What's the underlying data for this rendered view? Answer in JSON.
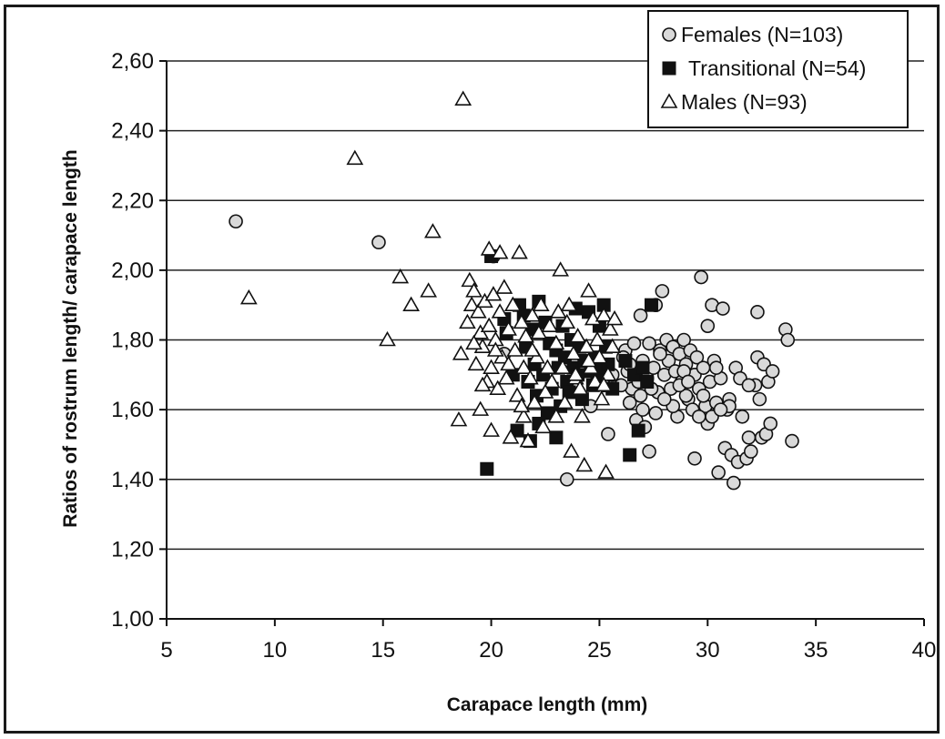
{
  "chart_data": {
    "type": "scatter",
    "xlabel": "Carapace length (mm)",
    "ylabel": "Ratios of rostrum length/ carapace length",
    "xlim": [
      5,
      40
    ],
    "ylim": [
      1.0,
      2.6
    ],
    "xticks": [
      "5",
      "10",
      "15",
      "20",
      "25",
      "30",
      "35",
      "40"
    ],
    "yticks": [
      "1,00",
      "1,20",
      "1,40",
      "1,60",
      "1,80",
      "2,00",
      "2,20",
      "2,40",
      "2,60"
    ],
    "grid": "horizontal",
    "legend_position": "top-right",
    "series": [
      {
        "name": "Females (N=103)",
        "marker": "circle",
        "color": "#d9d9d9",
        "points": [
          [
            8.2,
            2.14
          ],
          [
            14.8,
            2.08
          ],
          [
            20.1,
            2.04
          ],
          [
            20.6,
            1.76
          ],
          [
            23.5,
            1.4
          ],
          [
            24.6,
            1.61
          ],
          [
            25.4,
            1.53
          ],
          [
            26.2,
            1.77
          ],
          [
            26.3,
            1.71
          ],
          [
            26.4,
            1.62
          ],
          [
            26.5,
            1.66
          ],
          [
            26.6,
            1.79
          ],
          [
            26.7,
            1.57
          ],
          [
            26.8,
            1.68
          ],
          [
            26.9,
            1.64
          ],
          [
            26.9,
            1.87
          ],
          [
            27.0,
            1.74
          ],
          [
            27.1,
            1.55
          ],
          [
            27.2,
            1.69
          ],
          [
            27.3,
            1.48
          ],
          [
            27.3,
            1.79
          ],
          [
            27.5,
            1.72
          ],
          [
            27.6,
            1.9
          ],
          [
            27.7,
            1.65
          ],
          [
            27.8,
            1.77
          ],
          [
            27.9,
            1.94
          ],
          [
            28.0,
            1.7
          ],
          [
            28.1,
            1.8
          ],
          [
            28.2,
            1.74
          ],
          [
            28.3,
            1.66
          ],
          [
            28.4,
            1.78
          ],
          [
            28.5,
            1.71
          ],
          [
            28.6,
            1.58
          ],
          [
            28.7,
            1.76
          ],
          [
            28.8,
            1.68
          ],
          [
            28.9,
            1.8
          ],
          [
            29.0,
            1.73
          ],
          [
            29.1,
            1.63
          ],
          [
            29.2,
            1.77
          ],
          [
            29.3,
            1.6
          ],
          [
            29.4,
            1.7
          ],
          [
            29.4,
            1.46
          ],
          [
            29.5,
            1.75
          ],
          [
            29.6,
            1.66
          ],
          [
            29.7,
            1.98
          ],
          [
            29.8,
            1.72
          ],
          [
            29.9,
            1.61
          ],
          [
            30.0,
            1.84
          ],
          [
            30.0,
            1.56
          ],
          [
            30.1,
            1.68
          ],
          [
            30.2,
            1.9
          ],
          [
            30.3,
            1.74
          ],
          [
            30.4,
            1.62
          ],
          [
            30.5,
            1.42
          ],
          [
            30.6,
            1.69
          ],
          [
            30.7,
            1.89
          ],
          [
            30.8,
            1.49
          ],
          [
            30.9,
            1.6
          ],
          [
            31.0,
            1.63
          ],
          [
            31.1,
            1.47
          ],
          [
            31.2,
            1.39
          ],
          [
            31.3,
            1.72
          ],
          [
            31.4,
            1.45
          ],
          [
            31.5,
            1.69
          ],
          [
            31.6,
            1.58
          ],
          [
            31.8,
            1.46
          ],
          [
            31.9,
            1.52
          ],
          [
            32.0,
            1.48
          ],
          [
            32.2,
            1.67
          ],
          [
            32.3,
            1.75
          ],
          [
            32.3,
            1.88
          ],
          [
            32.4,
            1.63
          ],
          [
            32.5,
            1.52
          ],
          [
            32.6,
            1.73
          ],
          [
            32.7,
            1.53
          ],
          [
            32.8,
            1.68
          ],
          [
            32.9,
            1.56
          ],
          [
            33.0,
            1.71
          ],
          [
            30.2,
            1.58
          ],
          [
            29.0,
            1.64
          ],
          [
            28.4,
            1.61
          ],
          [
            27.6,
            1.59
          ],
          [
            28.9,
            1.71
          ],
          [
            29.6,
            1.58
          ],
          [
            30.4,
            1.72
          ],
          [
            31.0,
            1.61
          ],
          [
            31.9,
            1.67
          ],
          [
            33.6,
            1.83
          ],
          [
            33.7,
            1.8
          ],
          [
            33.9,
            1.51
          ],
          [
            26.0,
            1.67
          ],
          [
            26.4,
            1.73
          ],
          [
            27.4,
            1.66
          ],
          [
            28.0,
            1.63
          ],
          [
            28.7,
            1.67
          ],
          [
            29.1,
            1.68
          ],
          [
            29.8,
            1.64
          ],
          [
            30.6,
            1.6
          ],
          [
            25.2,
            1.67
          ],
          [
            25.6,
            1.7
          ],
          [
            26.1,
            1.75
          ],
          [
            27.0,
            1.6
          ],
          [
            27.8,
            1.76
          ]
        ]
      },
      {
        "name": "Transitional (N=54)",
        "marker": "square",
        "color": "#111111",
        "points": [
          [
            19.8,
            1.43
          ],
          [
            20.0,
            2.04
          ],
          [
            20.6,
            1.86
          ],
          [
            20.7,
            1.82
          ],
          [
            21.0,
            1.7
          ],
          [
            21.2,
            1.54
          ],
          [
            21.3,
            1.9
          ],
          [
            21.5,
            1.87
          ],
          [
            21.6,
            1.78
          ],
          [
            21.7,
            1.68
          ],
          [
            21.8,
            1.51
          ],
          [
            21.9,
            1.83
          ],
          [
            22.0,
            1.73
          ],
          [
            22.1,
            1.64
          ],
          [
            22.2,
            1.91
          ],
          [
            22.2,
            1.56
          ],
          [
            22.4,
            1.7
          ],
          [
            22.5,
            1.85
          ],
          [
            22.6,
            1.59
          ],
          [
            22.7,
            1.79
          ],
          [
            22.8,
            1.66
          ],
          [
            23.0,
            1.52
          ],
          [
            23.0,
            1.77
          ],
          [
            23.1,
            1.72
          ],
          [
            23.2,
            1.61
          ],
          [
            23.3,
            1.84
          ],
          [
            23.4,
            1.75
          ],
          [
            23.5,
            1.68
          ],
          [
            23.6,
            1.65
          ],
          [
            23.7,
            1.8
          ],
          [
            23.8,
            1.72
          ],
          [
            23.9,
            1.89
          ],
          [
            24.0,
            1.7
          ],
          [
            24.1,
            1.78
          ],
          [
            24.2,
            1.63
          ],
          [
            24.3,
            1.74
          ],
          [
            24.5,
            1.88
          ],
          [
            24.6,
            1.71
          ],
          [
            24.7,
            1.67
          ],
          [
            24.8,
            1.75
          ],
          [
            24.9,
            1.69
          ],
          [
            25.0,
            1.84
          ],
          [
            25.1,
            1.72
          ],
          [
            25.2,
            1.9
          ],
          [
            25.3,
            1.78
          ],
          [
            25.4,
            1.73
          ],
          [
            25.6,
            1.66
          ],
          [
            26.2,
            1.74
          ],
          [
            26.4,
            1.47
          ],
          [
            26.6,
            1.7
          ],
          [
            26.8,
            1.54
          ],
          [
            27.0,
            1.72
          ],
          [
            27.2,
            1.68
          ],
          [
            27.4,
            1.9
          ]
        ]
      },
      {
        "name": "Males (N=93)",
        "marker": "triangle",
        "color": "#ffffff",
        "points": [
          [
            8.8,
            1.92
          ],
          [
            13.7,
            2.32
          ],
          [
            15.2,
            1.8
          ],
          [
            15.8,
            1.98
          ],
          [
            16.3,
            1.9
          ],
          [
            17.1,
            1.94
          ],
          [
            17.3,
            2.11
          ],
          [
            18.5,
            1.57
          ],
          [
            18.6,
            1.76
          ],
          [
            18.7,
            2.49
          ],
          [
            18.9,
            1.85
          ],
          [
            19.0,
            1.97
          ],
          [
            19.1,
            1.9
          ],
          [
            19.2,
            1.94
          ],
          [
            19.3,
            1.73
          ],
          [
            19.4,
            1.88
          ],
          [
            19.5,
            1.82
          ],
          [
            19.5,
            1.6
          ],
          [
            19.6,
            1.78
          ],
          [
            19.7,
            1.91
          ],
          [
            19.8,
            1.68
          ],
          [
            19.9,
            2.06
          ],
          [
            19.9,
            1.84
          ],
          [
            20.0,
            1.54
          ],
          [
            20.0,
            1.72
          ],
          [
            20.1,
            1.93
          ],
          [
            20.2,
            1.8
          ],
          [
            20.3,
            1.66
          ],
          [
            20.4,
            2.05
          ],
          [
            20.4,
            1.88
          ],
          [
            20.5,
            1.75
          ],
          [
            20.6,
            1.95
          ],
          [
            20.7,
            1.69
          ],
          [
            20.8,
            1.83
          ],
          [
            20.9,
            1.52
          ],
          [
            21.0,
            1.9
          ],
          [
            21.1,
            1.77
          ],
          [
            21.2,
            1.64
          ],
          [
            21.3,
            2.05
          ],
          [
            21.4,
            1.85
          ],
          [
            21.5,
            1.58
          ],
          [
            21.5,
            1.72
          ],
          [
            21.6,
            1.81
          ],
          [
            21.7,
            1.51
          ],
          [
            21.8,
            1.69
          ],
          [
            21.9,
            1.87
          ],
          [
            22.0,
            1.62
          ],
          [
            22.1,
            1.75
          ],
          [
            22.2,
            1.82
          ],
          [
            22.3,
            1.9
          ],
          [
            22.4,
            1.55
          ],
          [
            22.6,
            1.72
          ],
          [
            22.7,
            1.84
          ],
          [
            22.8,
            1.68
          ],
          [
            23.0,
            1.79
          ],
          [
            23.1,
            1.88
          ],
          [
            23.2,
            2.0
          ],
          [
            23.3,
            1.72
          ],
          [
            23.4,
            1.62
          ],
          [
            23.5,
            1.85
          ],
          [
            23.6,
            1.9
          ],
          [
            23.7,
            1.48
          ],
          [
            23.8,
            1.76
          ],
          [
            23.9,
            1.69
          ],
          [
            24.0,
            1.81
          ],
          [
            24.2,
            1.58
          ],
          [
            24.3,
            1.44
          ],
          [
            24.4,
            1.78
          ],
          [
            24.5,
            1.94
          ],
          [
            24.6,
            1.72
          ],
          [
            24.7,
            1.86
          ],
          [
            24.8,
            1.68
          ],
          [
            24.9,
            1.8
          ],
          [
            25.0,
            1.75
          ],
          [
            25.1,
            1.63
          ],
          [
            25.2,
            1.87
          ],
          [
            25.3,
            1.42
          ],
          [
            25.4,
            1.7
          ],
          [
            25.5,
            1.83
          ],
          [
            25.6,
            1.78
          ],
          [
            25.7,
            1.86
          ],
          [
            19.2,
            1.79
          ],
          [
            19.6,
            1.67
          ],
          [
            20.8,
            1.73
          ],
          [
            21.4,
            1.61
          ],
          [
            21.9,
            1.77
          ],
          [
            22.5,
            1.65
          ],
          [
            23.0,
            1.58
          ],
          [
            23.9,
            1.7
          ],
          [
            24.5,
            1.74
          ],
          [
            25.2,
            1.67
          ],
          [
            20.2,
            1.77
          ],
          [
            24.1,
            1.66
          ]
        ]
      }
    ]
  }
}
